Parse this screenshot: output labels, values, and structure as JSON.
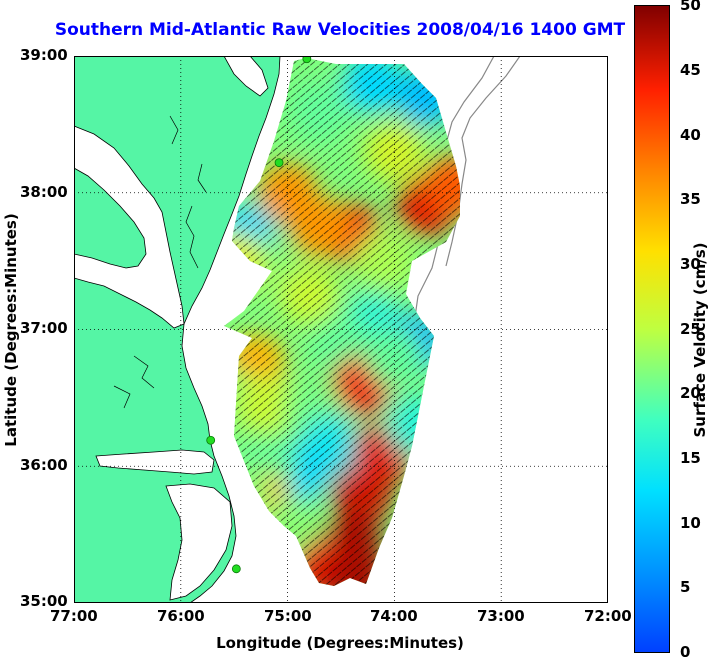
{
  "title": "Southern Mid-Atlantic Raw Velocities 2008/04/16 1400 GMT",
  "axes": {
    "xlabel": "Longitude (Degrees:Minutes)",
    "ylabel": "Latitude (Degrees:Minutes)",
    "xticks": [
      "77:00",
      "76:00",
      "75:00",
      "74:00",
      "73:00",
      "72:00"
    ],
    "yticks": [
      "39:00",
      "38:00",
      "37:00",
      "36:00",
      "35:00"
    ],
    "xlim": [
      -77,
      -72
    ],
    "ylim": [
      35,
      39
    ]
  },
  "colorbar": {
    "label": "Surface Velocity (cm/s)",
    "ticks": [
      "50",
      "45",
      "40",
      "35",
      "30",
      "25",
      "20",
      "15",
      "10",
      "5",
      "0"
    ],
    "range": [
      0,
      50
    ],
    "colormap": "jet"
  },
  "colors": {
    "land": "#55f5a5",
    "water": "#ffffff",
    "coastline": "#000000",
    "bathymetry": "#888888",
    "station": "#22dd22",
    "title": "#0000ff",
    "grid": "#000000"
  },
  "stations": [
    {
      "lon": -74.82,
      "lat": 38.98
    },
    {
      "lon": -75.08,
      "lat": 38.22
    },
    {
      "lon": -75.72,
      "lat": 36.19
    },
    {
      "lon": -75.48,
      "lat": 35.25
    }
  ],
  "regions": [
    {
      "lon": -74.0,
      "lat": 38.3,
      "level": 27
    },
    {
      "lon": -74.2,
      "lat": 38.8,
      "level": 12
    },
    {
      "lon": -73.7,
      "lat": 38.7,
      "level": 10
    },
    {
      "lon": -74.7,
      "lat": 38.6,
      "level": 20
    },
    {
      "lon": -75.0,
      "lat": 38.0,
      "level": 36
    },
    {
      "lon": -75.4,
      "lat": 37.7,
      "level": 12
    },
    {
      "lon": -75.2,
      "lat": 37.4,
      "level": 22
    },
    {
      "lon": -74.4,
      "lat": 37.7,
      "level": 44
    },
    {
      "lon": -74.7,
      "lat": 37.75,
      "level": 36
    },
    {
      "lon": -73.7,
      "lat": 37.9,
      "level": 45
    },
    {
      "lon": -73.45,
      "lat": 38.05,
      "level": 40
    },
    {
      "lon": -74.1,
      "lat": 37.5,
      "level": 24
    },
    {
      "lon": -74.8,
      "lat": 37.25,
      "level": 26
    },
    {
      "lon": -74.2,
      "lat": 37.05,
      "level": 16
    },
    {
      "lon": -73.8,
      "lat": 36.9,
      "level": 9
    },
    {
      "lon": -74.5,
      "lat": 36.9,
      "level": 20
    },
    {
      "lon": -74.3,
      "lat": 36.6,
      "level": 44
    },
    {
      "lon": -75.3,
      "lat": 36.75,
      "level": 34
    },
    {
      "lon": -75.55,
      "lat": 36.5,
      "level": 22
    },
    {
      "lon": -75.2,
      "lat": 36.45,
      "level": 26
    },
    {
      "lon": -74.75,
      "lat": 36.4,
      "level": 21
    },
    {
      "lon": -74.6,
      "lat": 36.15,
      "level": 14
    },
    {
      "lon": -74.9,
      "lat": 35.95,
      "level": 12
    },
    {
      "lon": -75.2,
      "lat": 36.0,
      "level": 20
    },
    {
      "lon": -75.25,
      "lat": 35.75,
      "level": 34
    },
    {
      "lon": -75.45,
      "lat": 35.8,
      "level": 22
    },
    {
      "lon": -74.95,
      "lat": 35.55,
      "level": 22
    },
    {
      "lon": -74.3,
      "lat": 35.8,
      "level": 46
    },
    {
      "lon": -74.4,
      "lat": 35.45,
      "level": 48
    },
    {
      "lon": -74.1,
      "lat": 36.1,
      "level": 45
    },
    {
      "lon": -74.65,
      "lat": 35.25,
      "level": 45
    },
    {
      "lon": -74.35,
      "lat": 35.2,
      "level": 48
    },
    {
      "lon": -73.8,
      "lat": 36.3,
      "level": 16
    },
    {
      "lon": -74.0,
      "lat": 36.8,
      "level": 20
    },
    {
      "lon": -75.5,
      "lat": 37.5,
      "level": 28
    }
  ]
}
